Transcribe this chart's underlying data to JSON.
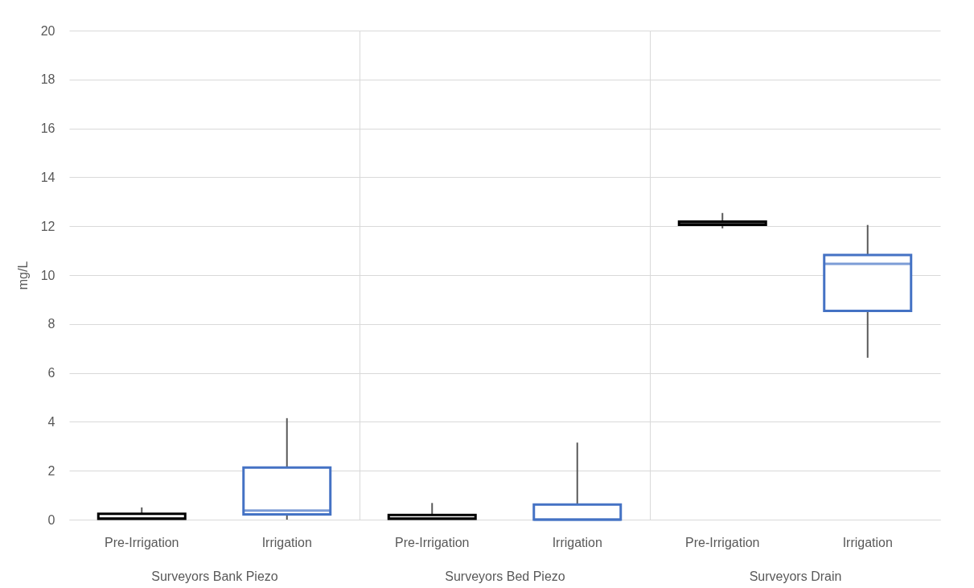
{
  "chart_data": [
    {
      "type": "box",
      "xlabel": "Surveyors Bank Piezo",
      "ylabel": "mg/L",
      "categories": [
        "Pre-Irrigation",
        "Irrigation"
      ],
      "colors": [
        "#000000",
        "#4472c4"
      ],
      "boxes": [
        {
          "low": 0,
          "q1": 0.03,
          "median": 0.05,
          "q3": 0.24,
          "high": 0.5
        },
        {
          "low": 0,
          "q1": 0.21,
          "median": 0.37,
          "q3": 2.13,
          "high": 4.15
        }
      ],
      "ylim": [
        0,
        20
      ],
      "yticks": [
        0,
        2,
        4,
        6,
        8,
        10,
        12,
        14,
        16,
        18,
        20
      ],
      "grid": "y"
    },
    {
      "type": "box",
      "xlabel": "Surveyors Bed Piezo",
      "categories": [
        "Pre-Irrigation",
        "Irrigation"
      ],
      "colors": [
        "#000000",
        "#4472c4"
      ],
      "boxes": [
        {
          "low": 0,
          "q1": 0.03,
          "median": 0.05,
          "q3": 0.19,
          "high": 0.68
        },
        {
          "low": 0,
          "q1": 0,
          "median": 0,
          "q3": 0.62,
          "high": 3.15
        }
      ],
      "ylim": [
        0,
        20
      ],
      "yticks": [
        0,
        2,
        4,
        6,
        8,
        10,
        12,
        14,
        16,
        18,
        20
      ],
      "grid": "y",
      "tick_labels": "x"
    },
    {
      "type": "box",
      "xlabel": "Surveyors Drain",
      "categories": [
        "Pre-Irrigation",
        "Irrigation"
      ],
      "colors": [
        "#000000",
        "#4472c4"
      ],
      "boxes": [
        {
          "low": 11.91,
          "q1": 12.06,
          "median": 12.13,
          "q3": 12.19,
          "high": 12.54
        },
        {
          "low": 6.62,
          "q1": 8.54,
          "median": 10.46,
          "q3": 10.82,
          "high": 12.05
        }
      ],
      "ylim": [
        0,
        20
      ],
      "yticks": [
        0,
        2,
        4,
        6,
        8,
        10,
        12,
        14,
        16,
        18,
        20
      ],
      "grid": "y",
      "tick_labels": "x"
    }
  ]
}
